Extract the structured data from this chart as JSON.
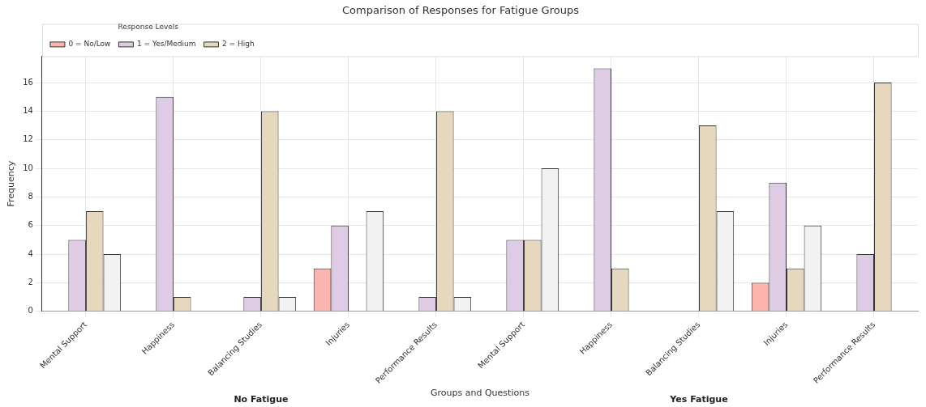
{
  "chart_data": {
    "type": "bar",
    "title": "Comparison of Responses for Fatigue Groups",
    "xlabel": "Groups and Questions",
    "ylabel": "Frequency",
    "legend_title": "Response Levels",
    "categories": [
      "Mental Support",
      "Happiness",
      "Balancing Studies",
      "Injuries",
      "Performance Results",
      "Mental Support",
      "Happiness",
      "Balancing Studies",
      "Injuries",
      "Performance Results"
    ],
    "series": [
      {
        "name": "0 = No/Low",
        "color": "#fbb4ae",
        "values": [
          null,
          null,
          null,
          3,
          null,
          null,
          null,
          null,
          2,
          null
        ]
      },
      {
        "name": "1 = Yes/Medium",
        "color": "#decbe4",
        "values": [
          5,
          15,
          1,
          6,
          1,
          5,
          17,
          null,
          9,
          4
        ]
      },
      {
        "name": "2 = High",
        "color": "#e5d8bd",
        "values": [
          7,
          1,
          14,
          null,
          14,
          5,
          3,
          13,
          3,
          16
        ]
      },
      {
        "color": "#f2f2f2",
        "values": [
          4,
          null,
          1,
          7,
          1,
          10,
          null,
          7,
          6,
          null
        ]
      }
    ],
    "ylim": [
      0,
      17.85
    ],
    "yticks": [
      0,
      2,
      4,
      6,
      8,
      10,
      12,
      14,
      16
    ],
    "grid": true,
    "legend": "top left",
    "annotations": [
      "No Fatigue",
      "Yes Fatigue"
    ]
  }
}
